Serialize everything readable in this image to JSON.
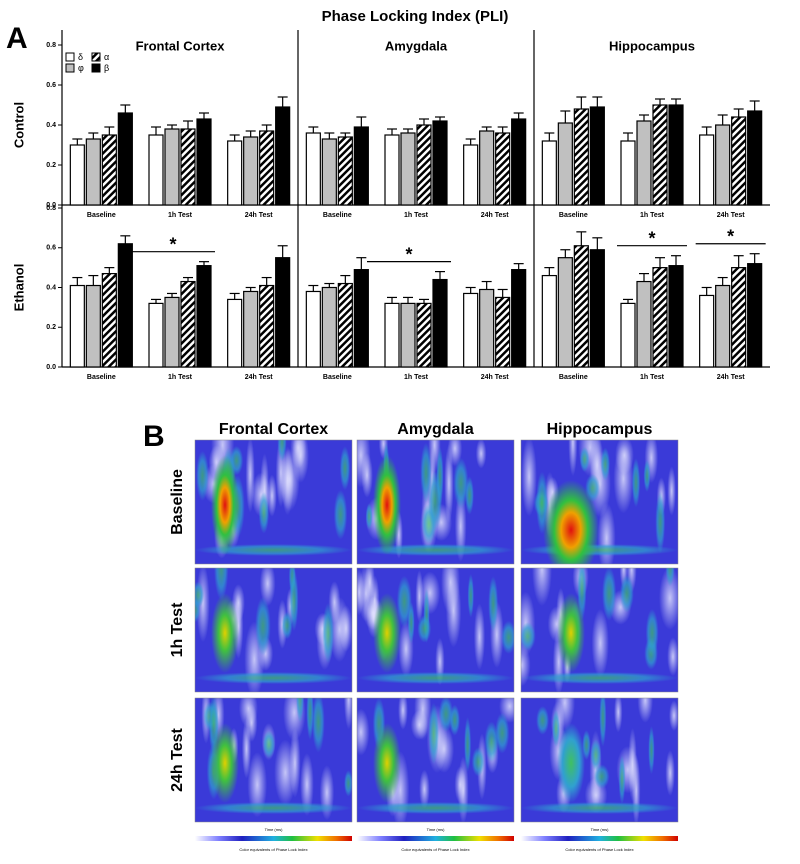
{
  "figure_title": "Phase Locking Index (PLI)",
  "panel_a_label": "A",
  "chart_data": [
    {
      "type": "bar",
      "title": "Frontal Cortex",
      "ylabel": "Control",
      "categories": [
        "Baseline",
        "1h Test",
        "24h Test"
      ],
      "ylim": [
        0,
        0.8
      ],
      "yticks": [
        {
          "value": 0,
          "label": "0.0"
        },
        0.2,
        0.4,
        0.6,
        0.8
      ],
      "series": [
        {
          "name": "δ",
          "color": "#ffffff",
          "values": [
            0.3,
            0.35,
            0.32
          ],
          "errors": [
            0.03,
            0.04,
            0.03
          ]
        },
        {
          "name": "φ",
          "color": "#c0c0c0",
          "values": [
            0.33,
            0.38,
            0.34
          ],
          "errors": [
            0.03,
            0.02,
            0.03
          ]
        },
        {
          "name": "α",
          "color": "#ffffff",
          "pattern": "hatch",
          "values": [
            0.35,
            0.38,
            0.37
          ],
          "errors": [
            0.04,
            0.04,
            0.03
          ]
        },
        {
          "name": "β",
          "color": "#000000",
          "values": [
            0.46,
            0.43,
            0.49
          ],
          "errors": [
            0.04,
            0.03,
            0.05
          ]
        }
      ]
    },
    {
      "type": "bar",
      "title": "Amygdala",
      "categories": [
        "Baseline",
        "1h Test",
        "24h Test"
      ],
      "ylim": [
        0,
        0.8
      ],
      "series": [
        {
          "color": "#ffffff",
          "values": [
            0.36,
            0.35,
            0.3
          ],
          "errors": [
            0.03,
            0.03,
            0.03
          ]
        },
        {
          "color": "#c0c0c0",
          "values": [
            0.33,
            0.36,
            0.37
          ],
          "errors": [
            0.03,
            0.02,
            0.02
          ]
        },
        {
          "color": "#ffffff",
          "pattern": "hatch",
          "values": [
            0.34,
            0.4,
            0.36
          ],
          "errors": [
            0.02,
            0.03,
            0.03
          ]
        },
        {
          "color": "#000000",
          "values": [
            0.39,
            0.42,
            0.43
          ],
          "errors": [
            0.05,
            0.02,
            0.03
          ]
        }
      ]
    },
    {
      "type": "bar",
      "title": "Hippocampus",
      "categories": [
        "Baseline",
        "1h Test",
        "24h Test"
      ],
      "ylim": [
        0,
        0.8
      ],
      "series": [
        {
          "color": "#ffffff",
          "values": [
            0.32,
            0.32,
            0.35
          ],
          "errors": [
            0.04,
            0.04,
            0.04
          ]
        },
        {
          "color": "#c0c0c0",
          "values": [
            0.41,
            0.42,
            0.4
          ],
          "errors": [
            0.06,
            0.03,
            0.05
          ]
        },
        {
          "color": "#ffffff",
          "pattern": "hatch",
          "values": [
            0.48,
            0.5,
            0.44
          ],
          "errors": [
            0.06,
            0.03,
            0.04
          ]
        },
        {
          "color": "#000000",
          "values": [
            0.49,
            0.5,
            0.47
          ],
          "errors": [
            0.05,
            0.03,
            0.05
          ]
        }
      ]
    },
    {
      "type": "bar",
      "ylabel": "Ethanol",
      "categories": [
        "Baseline",
        "1h Test",
        "24h Test"
      ],
      "ylim": [
        0,
        0.8
      ],
      "yticks": [
        {
          "value": 0,
          "label": "0.0"
        },
        0.2,
        0.4,
        0.6,
        0.8
      ],
      "series": [
        {
          "color": "#ffffff",
          "values": [
            0.41,
            0.32,
            0.34
          ],
          "errors": [
            0.04,
            0.02,
            0.03
          ]
        },
        {
          "color": "#c0c0c0",
          "values": [
            0.41,
            0.35,
            0.38
          ],
          "errors": [
            0.05,
            0.02,
            0.02
          ]
        },
        {
          "color": "#ffffff",
          "pattern": "hatch",
          "values": [
            0.47,
            0.43,
            0.41
          ],
          "errors": [
            0.03,
            0.02,
            0.04
          ]
        },
        {
          "color": "#000000",
          "values": [
            0.62,
            0.51,
            0.55
          ],
          "errors": [
            0.04,
            0.02,
            0.06
          ]
        }
      ],
      "annotations": [
        {
          "text": "*",
          "category": "1h Test"
        }
      ]
    },
    {
      "type": "bar",
      "categories": [
        "Baseline",
        "1h Test",
        "24h Test"
      ],
      "ylim": [
        0,
        0.8
      ],
      "series": [
        {
          "color": "#ffffff",
          "values": [
            0.38,
            0.32,
            0.37
          ],
          "errors": [
            0.03,
            0.03,
            0.03
          ]
        },
        {
          "color": "#c0c0c0",
          "values": [
            0.4,
            0.32,
            0.39
          ],
          "errors": [
            0.02,
            0.03,
            0.04
          ]
        },
        {
          "color": "#ffffff",
          "pattern": "hatch",
          "values": [
            0.42,
            0.32,
            0.35
          ],
          "errors": [
            0.04,
            0.02,
            0.04
          ]
        },
        {
          "color": "#000000",
          "values": [
            0.49,
            0.44,
            0.49
          ],
          "errors": [
            0.06,
            0.04,
            0.03
          ]
        }
      ],
      "annotations": [
        {
          "text": "*",
          "category": "1h Test"
        }
      ]
    },
    {
      "type": "bar",
      "categories": [
        "Baseline",
        "1h Test",
        "24h Test"
      ],
      "ylim": [
        0,
        0.8
      ],
      "series": [
        {
          "color": "#ffffff",
          "values": [
            0.46,
            0.32,
            0.36
          ],
          "errors": [
            0.04,
            0.02,
            0.04
          ]
        },
        {
          "color": "#c0c0c0",
          "values": [
            0.55,
            0.43,
            0.41
          ],
          "errors": [
            0.04,
            0.04,
            0.04
          ]
        },
        {
          "color": "#ffffff",
          "pattern": "hatch",
          "values": [
            0.61,
            0.5,
            0.5
          ],
          "errors": [
            0.07,
            0.05,
            0.06
          ]
        },
        {
          "color": "#000000",
          "values": [
            0.59,
            0.51,
            0.52
          ],
          "errors": [
            0.06,
            0.05,
            0.05
          ]
        }
      ],
      "annotations": [
        {
          "text": "*",
          "category": "1h Test"
        },
        {
          "text": "*",
          "category": "24h Test"
        }
      ]
    }
  ],
  "panel_b": {
    "label": "B",
    "columns": [
      "Frontal Cortex",
      "Amygdala",
      "Hippocampus"
    ],
    "rows": [
      "Baseline",
      "1h Test",
      "24h Test"
    ],
    "x_axis_label": "Time (ms)",
    "colorbar_label": "Color equivalents of Phase Lock Index"
  }
}
